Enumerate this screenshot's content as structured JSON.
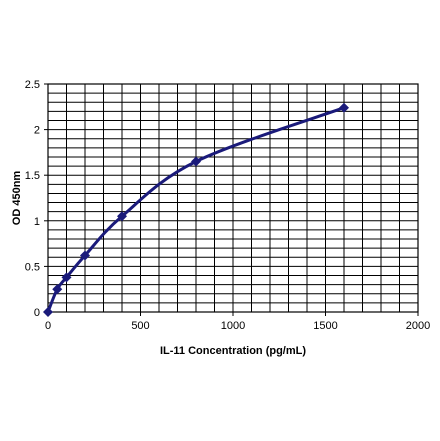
{
  "chart_data": {
    "type": "line",
    "xlabel": "IL-11 Concentration (pg/mL)",
    "ylabel": "OD 450nm",
    "xlim": [
      0,
      2000
    ],
    "ylim": [
      0,
      2.5
    ],
    "x_ticks": [
      0,
      500,
      1000,
      1500,
      2000
    ],
    "x_tick_labels": [
      "0",
      "500",
      "1000",
      "1500",
      "2000"
    ],
    "y_ticks": [
      0,
      0.5,
      1,
      1.5,
      2,
      2.5
    ],
    "y_tick_labels": [
      "0",
      "0.5",
      "1",
      "1.5",
      "2",
      "2.5"
    ],
    "x_minor_step": 100,
    "y_minor_step": 0.1,
    "grid": true,
    "legend": "none",
    "series": [
      {
        "color": "#1a1a7a",
        "marker": "diamond",
        "x": [
          0,
          50,
          100,
          200,
          400,
          800,
          1600
        ],
        "y": [
          0.0,
          0.25,
          0.38,
          0.62,
          1.05,
          1.65,
          2.24
        ]
      }
    ]
  }
}
